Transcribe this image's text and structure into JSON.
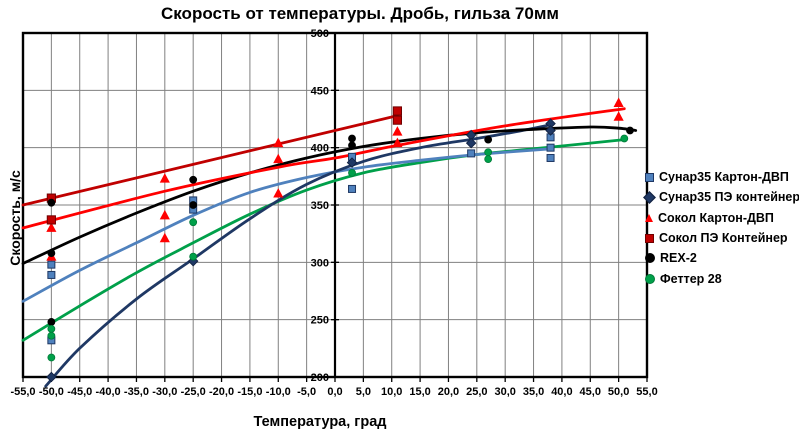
{
  "title": "Скорость от температуры. Дробь, гильза 70мм",
  "chart_data": {
    "type": "scatter",
    "title": "Скорость от температуры. Дробь, гильза 70мм",
    "xlabel": "Температура, град",
    "ylabel": "Скорость, м/с",
    "xlim": [
      -55,
      55
    ],
    "ylim": [
      200,
      500
    ],
    "grid": true,
    "legend_position": "right",
    "axis_cross_x": 0,
    "x_ticks": {
      "values": [
        -55,
        -50,
        -45,
        -40,
        -35,
        -30,
        -25,
        -20,
        -15,
        -10,
        -5,
        0,
        5,
        10,
        15,
        20,
        25,
        30,
        35,
        40,
        45,
        50,
        55
      ],
      "labels": [
        "-55,0",
        "-50,0",
        "-45,0",
        "-40,0",
        "-35,0",
        "-30,0",
        "-25,0",
        "-20,0",
        "-15,0",
        "-10,0",
        "-5,0",
        "0,0",
        "5,0",
        "10,0",
        "15,0",
        "20,0",
        "25,0",
        "30,0",
        "35,0",
        "40,0",
        "45,0",
        "50,0",
        "55,0"
      ]
    },
    "y_ticks": {
      "values": [
        500,
        450,
        400,
        350,
        300,
        250,
        200
      ],
      "labels": [
        "500",
        "450",
        "400",
        "350",
        "300",
        "250",
        "200"
      ]
    },
    "series": [
      {
        "name": "Сунар35 Картон-ДВП",
        "marker": "square",
        "color": "#4f81bd",
        "border": "#1f3864",
        "points": [
          [
            -50,
            298
          ],
          [
            -50,
            289
          ],
          [
            -50,
            232
          ],
          [
            -25,
            354
          ],
          [
            -25,
            346
          ],
          [
            3,
            392
          ],
          [
            3,
            364
          ],
          [
            24,
            395
          ],
          [
            38,
            409
          ],
          [
            38,
            400
          ],
          [
            38,
            391
          ]
        ],
        "trend": [
          [
            -55,
            266
          ],
          [
            -45,
            293
          ],
          [
            -35,
            317
          ],
          [
            -25,
            341
          ],
          [
            -15,
            361
          ],
          [
            -5,
            374
          ],
          [
            5,
            383
          ],
          [
            15,
            389
          ],
          [
            25,
            394
          ],
          [
            38,
            399
          ]
        ]
      },
      {
        "name": "Сунар35 ПЭ контейнер",
        "marker": "diamond",
        "color": "#1f3864",
        "border": "#101f3d",
        "points": [
          [
            -50,
            200
          ],
          [
            -25,
            301
          ],
          [
            3,
            387
          ],
          [
            24,
            411
          ],
          [
            24,
            404
          ],
          [
            38,
            421
          ],
          [
            38,
            415
          ]
        ],
        "trend": [
          [
            -51,
            192
          ],
          [
            -45,
            225
          ],
          [
            -35,
            268
          ],
          [
            -25,
            303
          ],
          [
            -15,
            338
          ],
          [
            -5,
            368
          ],
          [
            5,
            388
          ],
          [
            15,
            400
          ],
          [
            25,
            408
          ],
          [
            32,
            414
          ],
          [
            38,
            420
          ]
        ]
      },
      {
        "name": "Сокол Картон-ДВП",
        "marker": "triangle",
        "color": "#ff0000",
        "border": "#c00000",
        "points": [
          [
            -50,
            330
          ],
          [
            -50,
            305
          ],
          [
            -30,
            373
          ],
          [
            -30,
            341
          ],
          [
            -30,
            321
          ],
          [
            -10,
            404
          ],
          [
            -10,
            390
          ],
          [
            -10,
            360
          ],
          [
            11,
            414
          ],
          [
            11,
            404
          ],
          [
            50,
            439
          ],
          [
            50,
            427
          ]
        ],
        "trend": [
          [
            -55,
            330
          ],
          [
            -30,
            362
          ],
          [
            -10,
            383
          ],
          [
            0,
            391
          ],
          [
            11,
            402
          ],
          [
            30,
            419
          ],
          [
            51,
            434
          ]
        ]
      },
      {
        "name": "Сокол ПЭ Контейнер",
        "marker": "square",
        "color": "#c00000",
        "border": "#700000",
        "points": [
          [
            -50,
            356
          ],
          [
            -50,
            337
          ],
          [
            11,
            432
          ],
          [
            11,
            424
          ]
        ],
        "trend": [
          [
            -55,
            350
          ],
          [
            11,
            428
          ]
        ]
      },
      {
        "name": "REX-2",
        "marker": "circle",
        "color": "#000000",
        "border": "#000000",
        "points": [
          [
            -50,
            352
          ],
          [
            -50,
            308
          ],
          [
            -50,
            248
          ],
          [
            -25,
            372
          ],
          [
            -25,
            350
          ],
          [
            3,
            408
          ],
          [
            3,
            402
          ],
          [
            27,
            407
          ],
          [
            52,
            415
          ]
        ],
        "trend": [
          [
            -55,
            299
          ],
          [
            -45,
            322
          ],
          [
            -35,
            343
          ],
          [
            -25,
            362
          ],
          [
            -15,
            378
          ],
          [
            -5,
            391
          ],
          [
            5,
            401
          ],
          [
            15,
            408
          ],
          [
            25,
            413
          ],
          [
            35,
            416
          ],
          [
            45,
            418
          ],
          [
            50,
            417
          ],
          [
            53,
            415
          ]
        ]
      },
      {
        "name": "Феттер 28",
        "marker": "circle",
        "color": "#00a04a",
        "border": "#007a38",
        "points": [
          [
            -50,
            242
          ],
          [
            -50,
            236
          ],
          [
            -50,
            217
          ],
          [
            -25,
            335
          ],
          [
            -25,
            305
          ],
          [
            3,
            378
          ],
          [
            27,
            396
          ],
          [
            27,
            390
          ],
          [
            51,
            408
          ]
        ],
        "trend": [
          [
            -55,
            232
          ],
          [
            -45,
            262
          ],
          [
            -35,
            291
          ],
          [
            -25,
            317
          ],
          [
            -15,
            342
          ],
          [
            -5,
            363
          ],
          [
            5,
            378
          ],
          [
            15,
            387
          ],
          [
            25,
            394
          ],
          [
            35,
            399
          ],
          [
            45,
            404
          ],
          [
            51,
            407
          ]
        ]
      }
    ],
    "style": {
      "gridline_color": "#808080",
      "axis_color": "#000000",
      "background": "#ffffff",
      "trend_width": 2.8
    }
  }
}
